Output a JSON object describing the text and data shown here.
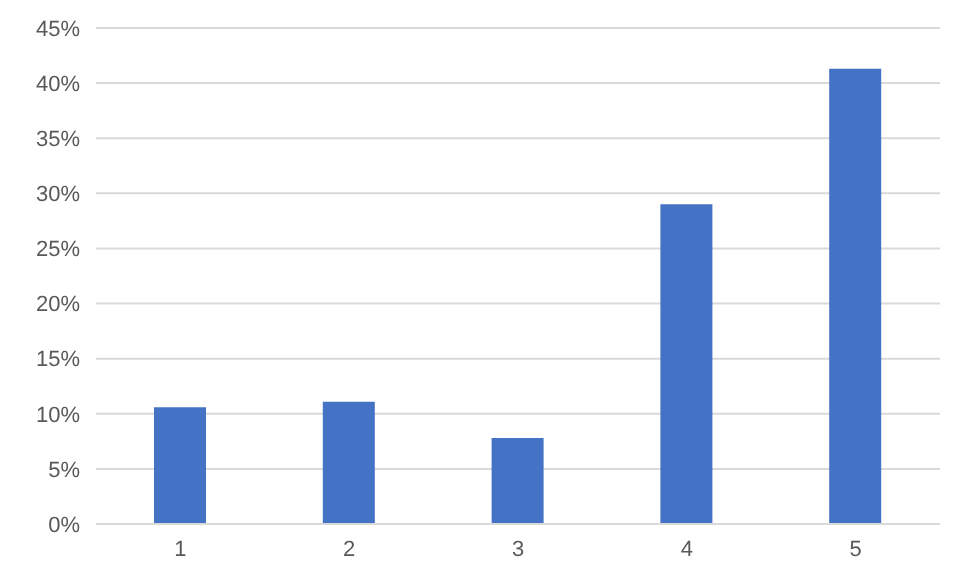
{
  "chart_data": {
    "type": "bar",
    "categories": [
      "1",
      "2",
      "3",
      "4",
      "5"
    ],
    "values": [
      10.6,
      11.1,
      7.8,
      29.0,
      41.3
    ],
    "color": "#4472c4",
    "ylim": [
      0,
      45
    ],
    "yticks": [
      {
        "value": 0,
        "label": "0%"
      },
      {
        "value": 5,
        "label": "5%"
      },
      {
        "value": 10,
        "label": "10%"
      },
      {
        "value": 15,
        "label": "15%"
      },
      {
        "value": 20,
        "label": "20%"
      },
      {
        "value": 25,
        "label": "25%"
      },
      {
        "value": 30,
        "label": "30%"
      },
      {
        "value": 35,
        "label": "35%"
      },
      {
        "value": 40,
        "label": "40%"
      },
      {
        "value": 45,
        "label": "45%"
      }
    ],
    "grid": "y"
  }
}
